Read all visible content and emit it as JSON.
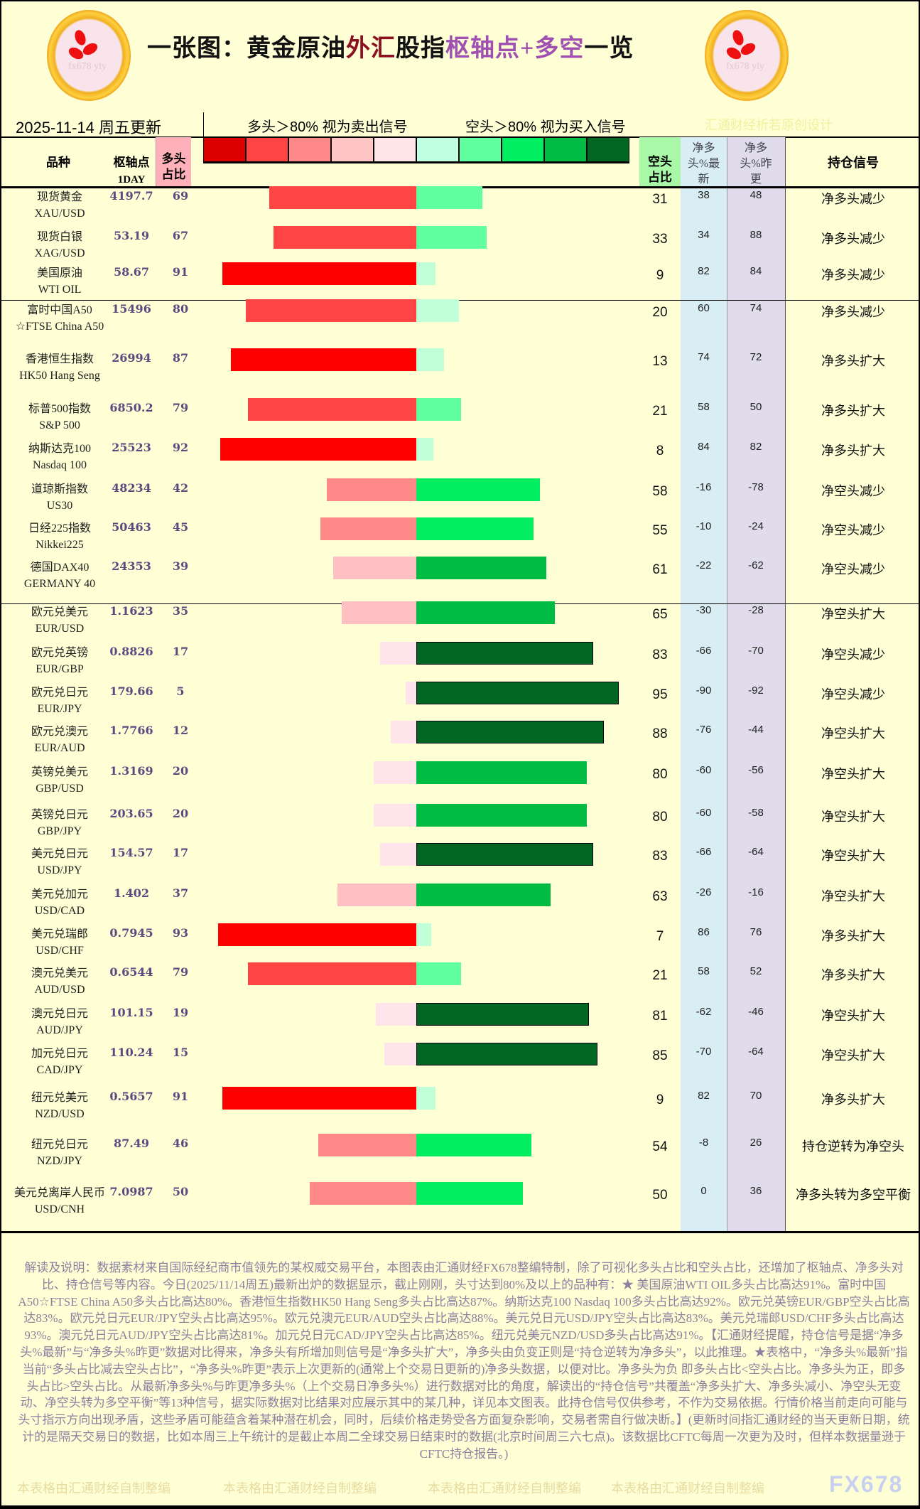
{
  "title": {
    "part1": "一张图：黄金原油",
    "part2": "外汇",
    "part3": "股指",
    "part4": "枢轴点+多空",
    "part5": "一览",
    "logo_text": "fx678 yly"
  },
  "header": {
    "date": "2025-11-14 周五更新",
    "legend_long": "多头＞80% 视为卖出信号",
    "legend_short": "空头＞80% 视为买入信号",
    "credit": "汇通财经析若原创设计",
    "col_name": "品种",
    "col_pivot": "枢轴点",
    "col_pivot_sub": "1DAY",
    "col_long": "多头占比",
    "col_short": "空头占比",
    "col_net_latest": "净多头%最新",
    "col_net_prev": "净多头%昨更",
    "col_signal": "持仓信号"
  },
  "palette": {
    "legend": [
      "#dd0000",
      "#ff4444",
      "#ff8888",
      "#ffc4c4",
      "#ffe4e8",
      "#c0ffe0",
      "#60ffa0",
      "#00ee60",
      "#00bb44",
      "#006622"
    ],
    "long": {
      "gt80": "#ff0000",
      "61_80": "#ff4444",
      "41_60": "#ff8888",
      "21_40": "#ffc0c4",
      "le20": "#ffe4ec"
    },
    "short": {
      "gt80": "#006622",
      "61_80": "#00bb44",
      "41_60": "#00ee60",
      "21_40": "#60ffa0",
      "le20": "#c0ffd8"
    },
    "net_latest_bg": "#d8eef4",
    "net_prev_bg": "#e0dcec"
  },
  "rows": [
    {
      "name": "现货黄金",
      "code": "XAU/USD",
      "pivot": "4197.7",
      "long": 69,
      "short": 31,
      "net_latest": "38",
      "net_prev": "48",
      "signal": "净多头减少"
    },
    {
      "name": "现货白银",
      "code": "XAG/USD",
      "pivot": "53.19",
      "long": 67,
      "short": 33,
      "net_latest": "34",
      "net_prev": "88",
      "signal": "净多头减少"
    },
    {
      "name": "美国原油",
      "code": "WTI OIL",
      "pivot": "58.67",
      "long": 91,
      "short": 9,
      "net_latest": "82",
      "net_prev": "84",
      "signal": "净多头减少"
    },
    {
      "name": "富时中国A50",
      "code": "☆FTSE China A50",
      "pivot": "15496",
      "long": 80,
      "short": 20,
      "net_latest": "60",
      "net_prev": "74",
      "signal": "净多头减少"
    },
    {
      "name": "香港恒生指数",
      "code": "HK50 Hang Seng",
      "pivot": "26994",
      "long": 87,
      "short": 13,
      "net_latest": "74",
      "net_prev": "72",
      "signal": "净多头扩大"
    },
    {
      "name": "标普500指数",
      "code": "S&P 500",
      "pivot": "6850.2",
      "long": 79,
      "short": 21,
      "net_latest": "58",
      "net_prev": "50",
      "signal": "净多头扩大"
    },
    {
      "name": "纳斯达克100",
      "code": "Nasdaq 100",
      "pivot": "25523",
      "long": 92,
      "short": 8,
      "net_latest": "84",
      "net_prev": "82",
      "signal": "净多头扩大"
    },
    {
      "name": "道琼斯指数",
      "code": "US30",
      "pivot": "48234",
      "long": 42,
      "short": 58,
      "net_latest": "-16",
      "net_prev": "-78",
      "signal": "净空头减少"
    },
    {
      "name": "日经225指数",
      "code": "Nikkei225",
      "pivot": "50463",
      "long": 45,
      "short": 55,
      "net_latest": "-10",
      "net_prev": "-24",
      "signal": "净空头减少"
    },
    {
      "name": "德国DAX40",
      "code": "GERMANY 40",
      "pivot": "24353",
      "long": 39,
      "short": 61,
      "net_latest": "-22",
      "net_prev": "-62",
      "signal": "净空头减少"
    },
    {
      "name": "欧元兑美元",
      "code": "EUR/USD",
      "pivot": "1.1623",
      "long": 35,
      "short": 65,
      "net_latest": "-30",
      "net_prev": "-28",
      "signal": "净空头扩大"
    },
    {
      "name": "欧元兑英镑",
      "code": "EUR/GBP",
      "pivot": "0.8826",
      "long": 17,
      "short": 83,
      "net_latest": "-66",
      "net_prev": "-70",
      "signal": "净空头减少"
    },
    {
      "name": "欧元兑日元",
      "code": "EUR/JPY",
      "pivot": "179.66",
      "long": 5,
      "short": 95,
      "net_latest": "-90",
      "net_prev": "-92",
      "signal": "净空头减少"
    },
    {
      "name": "欧元兑澳元",
      "code": "EUR/AUD",
      "pivot": "1.7766",
      "long": 12,
      "short": 88,
      "net_latest": "-76",
      "net_prev": "-44",
      "signal": "净空头扩大"
    },
    {
      "name": "英镑兑美元",
      "code": "GBP/USD",
      "pivot": "1.3169",
      "long": 20,
      "short": 80,
      "net_latest": "-60",
      "net_prev": "-56",
      "signal": "净空头扩大"
    },
    {
      "name": "英镑兑日元",
      "code": "GBP/JPY",
      "pivot": "203.65",
      "long": 20,
      "short": 80,
      "net_latest": "-60",
      "net_prev": "-58",
      "signal": "净空头扩大"
    },
    {
      "name": "美元兑日元",
      "code": "USD/JPY",
      "pivot": "154.57",
      "long": 17,
      "short": 83,
      "net_latest": "-66",
      "net_prev": "-64",
      "signal": "净空头扩大"
    },
    {
      "name": "美元兑加元",
      "code": "USD/CAD",
      "pivot": "1.402",
      "long": 37,
      "short": 63,
      "net_latest": "-26",
      "net_prev": "-16",
      "signal": "净空头扩大"
    },
    {
      "name": "美元兑瑞郎",
      "code": "USD/CHF",
      "pivot": "0.7945",
      "long": 93,
      "short": 7,
      "net_latest": "86",
      "net_prev": "76",
      "signal": "净多头扩大"
    },
    {
      "name": "澳元兑美元",
      "code": "AUD/USD",
      "pivot": "0.6544",
      "long": 79,
      "short": 21,
      "net_latest": "58",
      "net_prev": "52",
      "signal": "净多头扩大"
    },
    {
      "name": "澳元兑日元",
      "code": "AUD/JPY",
      "pivot": "101.15",
      "long": 19,
      "short": 81,
      "net_latest": "-62",
      "net_prev": "-46",
      "signal": "净空头扩大"
    },
    {
      "name": "加元兑日元",
      "code": "CAD/JPY",
      "pivot": "110.24",
      "long": 15,
      "short": 85,
      "net_latest": "-70",
      "net_prev": "-64",
      "signal": "净空头扩大"
    },
    {
      "name": "纽元兑美元",
      "code": "NZD/USD",
      "pivot": "0.5657",
      "long": 91,
      "short": 9,
      "net_latest": "82",
      "net_prev": "70",
      "signal": "净多头扩大"
    },
    {
      "name": "纽元兑日元",
      "code": "NZD/JPY",
      "pivot": "87.49",
      "long": 46,
      "short": 54,
      "net_latest": "-8",
      "net_prev": "26",
      "signal": "持仓逆转为净空头"
    },
    {
      "name": "美元兑离岸人民币",
      "code": "USD/CNH",
      "pivot": "7.0987",
      "long": 50,
      "short": 50,
      "net_latest": "0",
      "net_prev": "36",
      "signal": "净多头转为多空平衡"
    }
  ],
  "notes": "解读及说明：数据素材来自国际经纪商市值领先的某权威交易平台，本图表由汇通财经FX678整编特制，除了可视化多头占比和空头占比，还增加了枢轴点、净多头对比、持仓信号等内容。今日(2025/11/14周五)最新出炉的数据显示，截止刚刚，头寸达到80%及以上的品种有：★ 美国原油WTI OIL多头占比高达91%。富时中国A50☆FTSE China A50多头占比高达80%。香港恒生指数HK50 Hang Seng多头占比高达87%。纳斯达克100 Nasdaq 100多头占比高达92%。欧元兑英镑EUR/GBP空头占比高达83%。欧元兑日元EUR/JPY空头占比高达95%。欧元兑澳元EUR/AUD空头占比高达88%。美元兑日元USD/JPY空头占比高达83%。美元兑瑞郎USD/CHF多头占比高达93%。澳元兑日元AUD/JPY空头占比高达81%。加元兑日元CAD/JPY空头占比高达85%。纽元兑美元NZD/USD多头占比高达91%。【汇通财经提醒，持仓信号是据“净多头%最新”与“净多头%昨更”数据对比得来，净多头有所增加则信号是“净多头扩大”，净多头由负变正则是“持仓逆转为净多头”，以此推理。★表格中，“净多头%最新”指当前“多头占比减去空头占比”，“净多头%昨更”表示上次更新的(通常上个交易日更新的)净多头数据，以便对比。净多头为负 即多头占比<空头占比。净多头为正，即多头占比>空头占比。从最新净多头%与昨更净多头%（上个交易日净多头%）进行数据对比的角度，解读出的“持仓信号”共覆盖“净多头扩大、净多头减小、净空头无变动、净空头转为多空平衡”等13种信号，据实际数据对比结果对应展示其中的某几种，详见本文图表。此持仓信号仅供参考，不作为交易依据。行情价格当前走向可能与头寸指示方向出现矛盾，这些矛盾可能蕴含着某种潜在机会，同时，后续价格走势受各方面复杂影响，交易者需自行做决断。】(更新时间指汇通财经的当天更新日期，统计的是隔天交易日的数据，比如本周三上午统计的是截止本周二全球交易日结束时的数据(北京时间周三六七点)。该数据比CFTC每周一次更为及时，但样本数据量逊于CFTC持仓报告。)",
  "watermarks": [
    "本表格由汇通财经自制整编",
    "本表格由汇通财经自制整编",
    "本表格由汇通财经自制整编",
    "本表格由汇通财经自制整编"
  ],
  "brand": "FX678"
}
